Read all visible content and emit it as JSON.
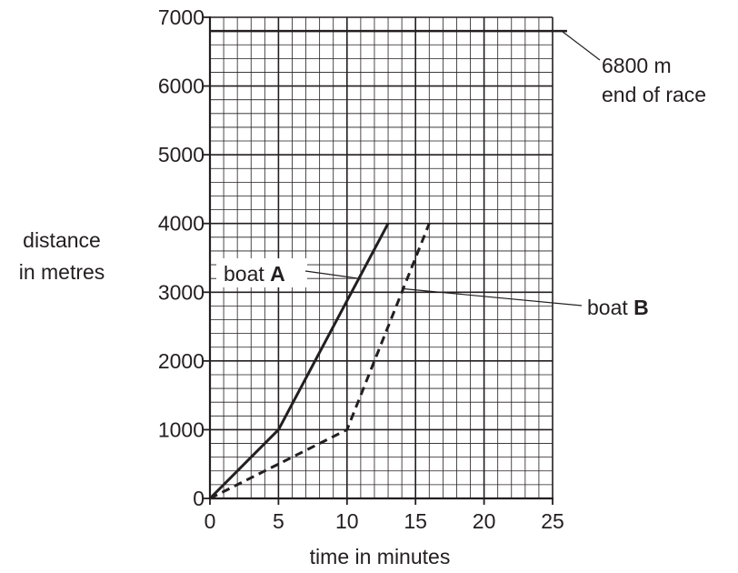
{
  "chart_data": {
    "type": "line",
    "xlabel": "time in minutes",
    "ylabel": [
      "distance",
      "in metres"
    ],
    "xlim": [
      0,
      25
    ],
    "ylim": [
      0,
      7000
    ],
    "x_ticks": [
      0,
      5,
      10,
      15,
      20,
      25
    ],
    "y_ticks": [
      0,
      1000,
      2000,
      3000,
      4000,
      5000,
      6000,
      7000
    ],
    "x_tick_labels": [
      "0",
      "5",
      "10",
      "15",
      "20",
      "25"
    ],
    "y_tick_labels": [
      "0",
      "1000",
      "2000",
      "3000",
      "4000",
      "5000",
      "6000",
      "7000"
    ],
    "grid": true,
    "grid_minor_x_step": 1,
    "grid_minor_y_step": 200,
    "series": [
      {
        "name_prefix": "boat ",
        "name_letter": "A",
        "style": "solid",
        "x": [
          0,
          5,
          13
        ],
        "y": [
          0,
          1000,
          4000
        ]
      },
      {
        "name_prefix": "boat ",
        "name_letter": "B",
        "style": "dashed",
        "x": [
          0,
          10,
          16
        ],
        "y": [
          0,
          1000,
          4000
        ]
      }
    ],
    "reference_line": {
      "y": 6800,
      "label_line1": "6800 m",
      "label_line2": "end of race"
    },
    "color": "#231f20"
  }
}
